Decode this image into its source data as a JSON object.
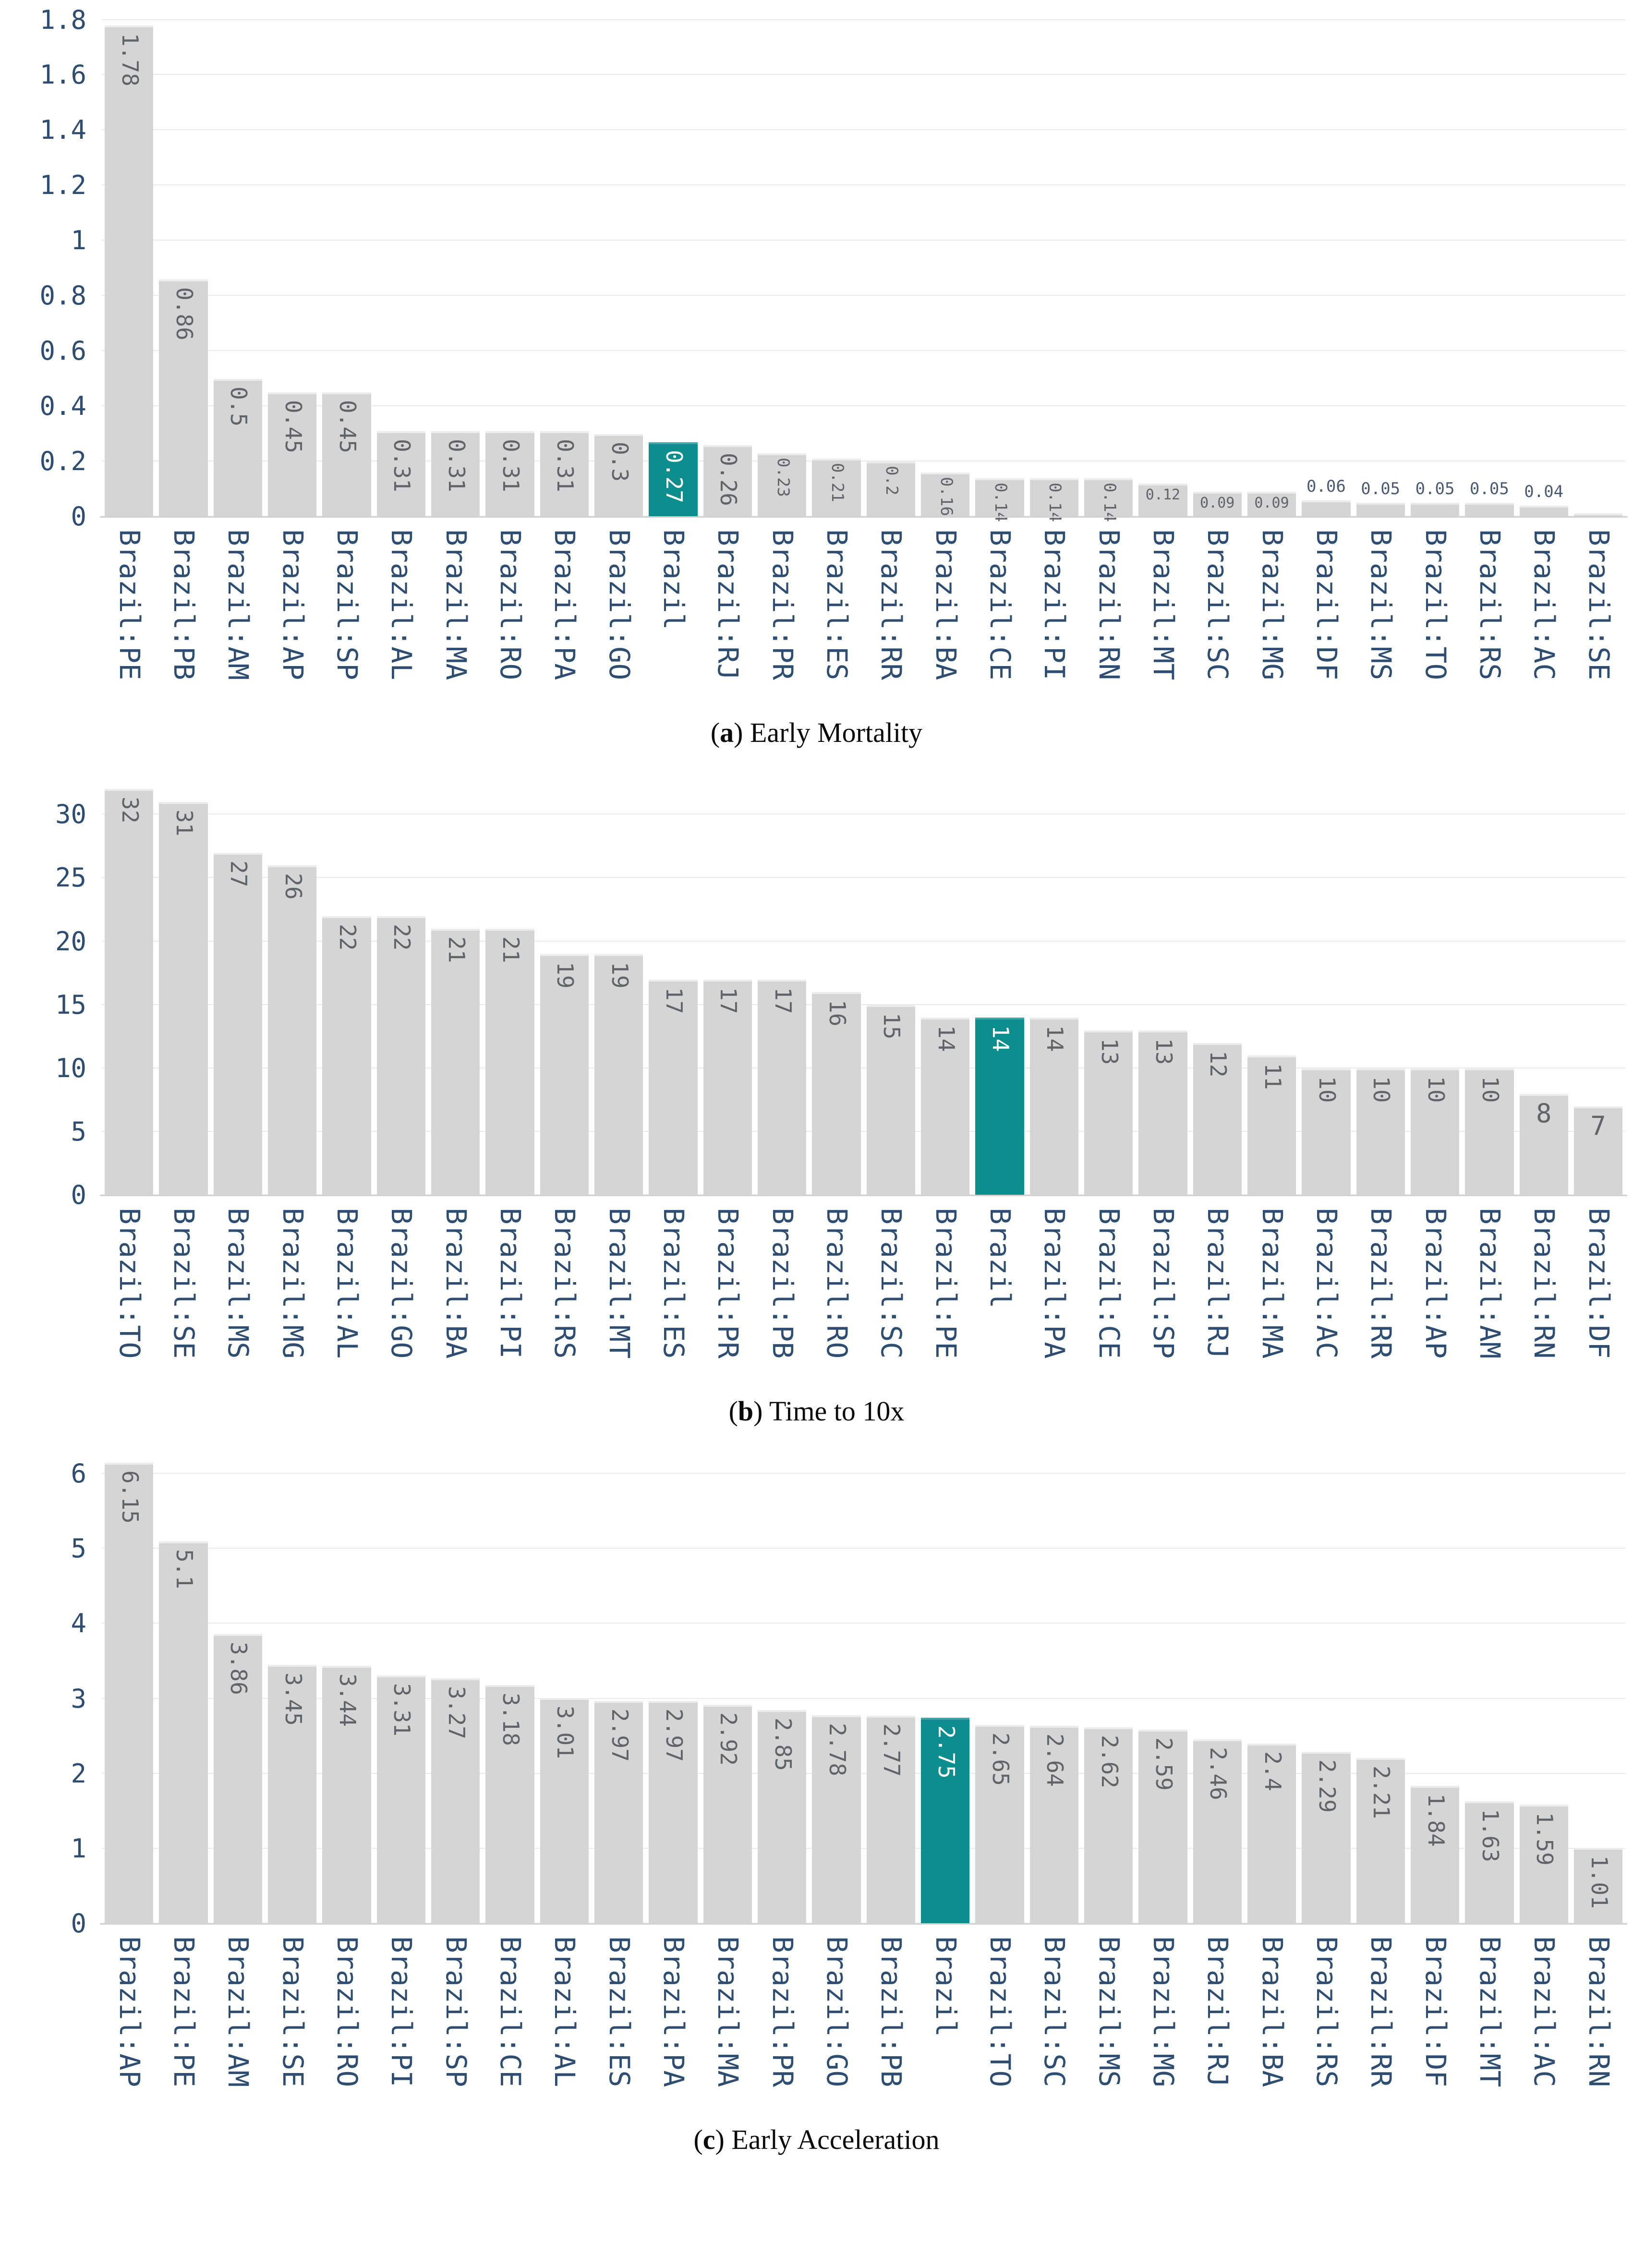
{
  "figure": {
    "highlight_color": "#0c8e8f",
    "bar_color": "#d5d5d5",
    "axis_text_color": "#2e4d73",
    "inside_label_color": "#606468",
    "outside_label_color": "#4a5a74",
    "grid_color": "#ebebee"
  },
  "chart_data": [
    {
      "type": "bar",
      "id": "a",
      "caption_letter": "a",
      "caption_title": "Early Mortality",
      "xlabel": "",
      "ylabel": "",
      "ylim": [
        0,
        1.82
      ],
      "grid": true,
      "legend": "none",
      "yticks": [
        [
          0,
          "0"
        ],
        [
          0.2,
          "0.2"
        ],
        [
          0.4,
          "0.4"
        ],
        [
          0.6,
          "0.6"
        ],
        [
          0.8,
          "0.8"
        ],
        [
          1,
          "1"
        ],
        [
          1.2,
          "1.2"
        ],
        [
          1.4,
          "1.4"
        ],
        [
          1.6,
          "1.6"
        ],
        [
          1.8,
          "1.8"
        ]
      ],
      "bars": [
        {
          "x": "Brazil:PE",
          "v": 1.78,
          "t": "1.78",
          "m": "rot"
        },
        {
          "x": "Brazil:PB",
          "v": 0.86,
          "t": "0.86",
          "m": "rot"
        },
        {
          "x": "Brazil:AM",
          "v": 0.5,
          "t": "0.5",
          "m": "rot"
        },
        {
          "x": "Brazil:AP",
          "v": 0.45,
          "t": "0.45",
          "m": "rot"
        },
        {
          "x": "Brazil:SP",
          "v": 0.45,
          "t": "0.45",
          "m": "rot"
        },
        {
          "x": "Brazil:AL",
          "v": 0.31,
          "t": "0.31",
          "m": "rot"
        },
        {
          "x": "Brazil:MA",
          "v": 0.31,
          "t": "0.31",
          "m": "rot"
        },
        {
          "x": "Brazil:RO",
          "v": 0.31,
          "t": "0.31",
          "m": "rot"
        },
        {
          "x": "Brazil:PA",
          "v": 0.31,
          "t": "0.31",
          "m": "rot"
        },
        {
          "x": "Brazil:GO",
          "v": 0.3,
          "t": "0.3",
          "m": "rot"
        },
        {
          "x": "Brazil",
          "v": 0.27,
          "t": "0.27",
          "m": "rot",
          "hl": true
        },
        {
          "x": "Brazil:RJ",
          "v": 0.26,
          "t": "0.26",
          "m": "rot"
        },
        {
          "x": "Brazil:PR",
          "v": 0.23,
          "t": "0.23",
          "m": "rot"
        },
        {
          "x": "Brazil:ES",
          "v": 0.21,
          "t": "0.21",
          "m": "rot"
        },
        {
          "x": "Brazil:RR",
          "v": 0.2,
          "t": "0.2",
          "m": "rot"
        },
        {
          "x": "Brazil:BA",
          "v": 0.16,
          "t": "0.16",
          "m": "rot"
        },
        {
          "x": "Brazil:CE",
          "v": 0.14,
          "t": "0.14",
          "m": "rot"
        },
        {
          "x": "Brazil:PI",
          "v": 0.14,
          "t": "0.14",
          "m": "rot"
        },
        {
          "x": "Brazil:RN",
          "v": 0.14,
          "t": "0.14",
          "m": "rot"
        },
        {
          "x": "Brazil:MT",
          "v": 0.12,
          "t": "0.12",
          "m": "in-h"
        },
        {
          "x": "Brazil:SC",
          "v": 0.09,
          "t": "0.09",
          "m": "in-h"
        },
        {
          "x": "Brazil:MG",
          "v": 0.09,
          "t": "0.09",
          "m": "in-h"
        },
        {
          "x": "Brazil:DF",
          "v": 0.06,
          "t": "0.06",
          "m": "out-h"
        },
        {
          "x": "Brazil:MS",
          "v": 0.05,
          "t": "0.05",
          "m": "out-h"
        },
        {
          "x": "Brazil:TO",
          "v": 0.05,
          "t": "0.05",
          "m": "out-h"
        },
        {
          "x": "Brazil:RS",
          "v": 0.05,
          "t": "0.05",
          "m": "out-h"
        },
        {
          "x": "Brazil:AC",
          "v": 0.04,
          "t": "0.04",
          "m": "out-h"
        },
        {
          "x": "Brazil:SE",
          "v": 0.012,
          "t": "",
          "m": "none"
        }
      ]
    },
    {
      "type": "bar",
      "id": "b",
      "caption_letter": "b",
      "caption_title": "Time to 10x",
      "xlabel": "",
      "ylabel": "",
      "ylim": [
        0,
        33
      ],
      "grid": true,
      "legend": "none",
      "yticks": [
        [
          0,
          "0"
        ],
        [
          5,
          "5"
        ],
        [
          10,
          "10"
        ],
        [
          15,
          "15"
        ],
        [
          20,
          "20"
        ],
        [
          25,
          "25"
        ],
        [
          30,
          "30"
        ]
      ],
      "bars": [
        {
          "x": "Brazil:TO",
          "v": 32,
          "t": "32",
          "m": "rot"
        },
        {
          "x": "Brazil:SE",
          "v": 31,
          "t": "31",
          "m": "rot"
        },
        {
          "x": "Brazil:MS",
          "v": 27,
          "t": "27",
          "m": "rot"
        },
        {
          "x": "Brazil:MG",
          "v": 26,
          "t": "26",
          "m": "rot"
        },
        {
          "x": "Brazil:AL",
          "v": 22,
          "t": "22",
          "m": "rot"
        },
        {
          "x": "Brazil:GO",
          "v": 22,
          "t": "22",
          "m": "rot"
        },
        {
          "x": "Brazil:BA",
          "v": 21,
          "t": "21",
          "m": "rot"
        },
        {
          "x": "Brazil:PI",
          "v": 21,
          "t": "21",
          "m": "rot"
        },
        {
          "x": "Brazil:RS",
          "v": 19,
          "t": "19",
          "m": "rot"
        },
        {
          "x": "Brazil:MT",
          "v": 19,
          "t": "19",
          "m": "rot"
        },
        {
          "x": "Brazil:ES",
          "v": 17,
          "t": "17",
          "m": "rot"
        },
        {
          "x": "Brazil:PR",
          "v": 17,
          "t": "17",
          "m": "rot"
        },
        {
          "x": "Brazil:PB",
          "v": 17,
          "t": "17",
          "m": "rot"
        },
        {
          "x": "Brazil:RO",
          "v": 16,
          "t": "16",
          "m": "rot"
        },
        {
          "x": "Brazil:SC",
          "v": 15,
          "t": "15",
          "m": "rot"
        },
        {
          "x": "Brazil:PE",
          "v": 14,
          "t": "14",
          "m": "rot"
        },
        {
          "x": "Brazil",
          "v": 14,
          "t": "14",
          "m": "rot",
          "hl": true
        },
        {
          "x": "Brazil:PA",
          "v": 14,
          "t": "14",
          "m": "rot"
        },
        {
          "x": "Brazil:CE",
          "v": 13,
          "t": "13",
          "m": "rot"
        },
        {
          "x": "Brazil:SP",
          "v": 13,
          "t": "13",
          "m": "rot"
        },
        {
          "x": "Brazil:RJ",
          "v": 12,
          "t": "12",
          "m": "rot"
        },
        {
          "x": "Brazil:MA",
          "v": 11,
          "t": "11",
          "m": "rot"
        },
        {
          "x": "Brazil:AC",
          "v": 10,
          "t": "10",
          "m": "rot"
        },
        {
          "x": "Brazil:RR",
          "v": 10,
          "t": "10",
          "m": "rot"
        },
        {
          "x": "Brazil:AP",
          "v": 10,
          "t": "10",
          "m": "rot"
        },
        {
          "x": "Brazil:AM",
          "v": 10,
          "t": "10",
          "m": "rot"
        },
        {
          "x": "Brazil:RN",
          "v": 8,
          "t": "8",
          "m": "in-h"
        },
        {
          "x": "Brazil:DF",
          "v": 7,
          "t": "7",
          "m": "in-h"
        }
      ]
    },
    {
      "type": "bar",
      "id": "c",
      "caption_letter": "c",
      "caption_title": "Early Acceleration",
      "xlabel": "",
      "ylabel": "",
      "ylim": [
        0,
        6.25
      ],
      "grid": true,
      "legend": "none",
      "yticks": [
        [
          0,
          "0"
        ],
        [
          1,
          "1"
        ],
        [
          2,
          "2"
        ],
        [
          3,
          "3"
        ],
        [
          4,
          "4"
        ],
        [
          5,
          "5"
        ],
        [
          6,
          "6"
        ]
      ],
      "bars": [
        {
          "x": "Brazil:AP",
          "v": 6.15,
          "t": "6.15",
          "m": "rot"
        },
        {
          "x": "Brazil:PE",
          "v": 5.1,
          "t": "5.1",
          "m": "rot"
        },
        {
          "x": "Brazil:AM",
          "v": 3.86,
          "t": "3.86",
          "m": "rot"
        },
        {
          "x": "Brazil:SE",
          "v": 3.45,
          "t": "3.45",
          "m": "rot"
        },
        {
          "x": "Brazil:RO",
          "v": 3.44,
          "t": "3.44",
          "m": "rot"
        },
        {
          "x": "Brazil:PI",
          "v": 3.31,
          "t": "3.31",
          "m": "rot"
        },
        {
          "x": "Brazil:SP",
          "v": 3.27,
          "t": "3.27",
          "m": "rot"
        },
        {
          "x": "Brazil:CE",
          "v": 3.18,
          "t": "3.18",
          "m": "rot"
        },
        {
          "x": "Brazil:AL",
          "v": 3.01,
          "t": "3.01",
          "m": "rot"
        },
        {
          "x": "Brazil:ES",
          "v": 2.97,
          "t": "2.97",
          "m": "rot"
        },
        {
          "x": "Brazil:PA",
          "v": 2.97,
          "t": "2.97",
          "m": "rot"
        },
        {
          "x": "Brazil:MA",
          "v": 2.92,
          "t": "2.92",
          "m": "rot"
        },
        {
          "x": "Brazil:PR",
          "v": 2.85,
          "t": "2.85",
          "m": "rot"
        },
        {
          "x": "Brazil:GO",
          "v": 2.78,
          "t": "2.78",
          "m": "rot"
        },
        {
          "x": "Brazil:PB",
          "v": 2.77,
          "t": "2.77",
          "m": "rot"
        },
        {
          "x": "Brazil",
          "v": 2.75,
          "t": "2.75",
          "m": "rot",
          "hl": true
        },
        {
          "x": "Brazil:TO",
          "v": 2.65,
          "t": "2.65",
          "m": "rot"
        },
        {
          "x": "Brazil:SC",
          "v": 2.64,
          "t": "2.64",
          "m": "rot"
        },
        {
          "x": "Brazil:MS",
          "v": 2.62,
          "t": "2.62",
          "m": "rot"
        },
        {
          "x": "Brazil:MG",
          "v": 2.59,
          "t": "2.59",
          "m": "rot"
        },
        {
          "x": "Brazil:RJ",
          "v": 2.46,
          "t": "2.46",
          "m": "rot"
        },
        {
          "x": "Brazil:BA",
          "v": 2.4,
          "t": "2.4",
          "m": "rot"
        },
        {
          "x": "Brazil:RS",
          "v": 2.29,
          "t": "2.29",
          "m": "rot"
        },
        {
          "x": "Brazil:RR",
          "v": 2.21,
          "t": "2.21",
          "m": "rot"
        },
        {
          "x": "Brazil:DF",
          "v": 1.84,
          "t": "1.84",
          "m": "rot"
        },
        {
          "x": "Brazil:MT",
          "v": 1.63,
          "t": "1.63",
          "m": "rot"
        },
        {
          "x": "Brazil:AC",
          "v": 1.59,
          "t": "1.59",
          "m": "rot"
        },
        {
          "x": "Brazil:RN",
          "v": 1.01,
          "t": "1.01",
          "m": "rot"
        }
      ]
    }
  ]
}
